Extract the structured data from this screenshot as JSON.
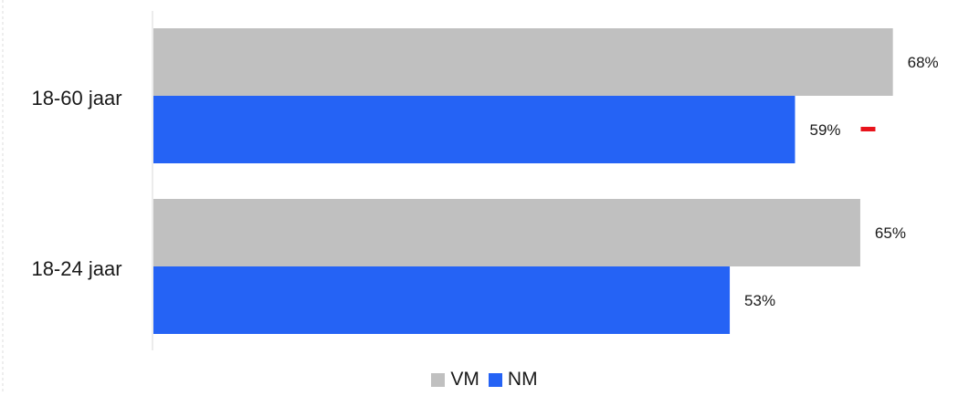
{
  "chart_data": {
    "type": "bar",
    "orientation": "horizontal",
    "categories": [
      "18-60 jaar",
      "18-24 jaar"
    ],
    "series": [
      {
        "name": "VM",
        "values": [
          68,
          65
        ],
        "labels": [
          "68%",
          "65%"
        ],
        "color": "#c0c0c0"
      },
      {
        "name": "NM",
        "values": [
          59,
          53
        ],
        "labels": [
          "59%",
          "53%"
        ],
        "color": "#2563f5"
      }
    ],
    "xlim": [
      0,
      75
    ],
    "grid": false,
    "legend": "bottom-center",
    "annotations": [
      {
        "category": "18-60 jaar",
        "series": "NM",
        "marker": "minus",
        "color": "#e8131b"
      }
    ]
  }
}
